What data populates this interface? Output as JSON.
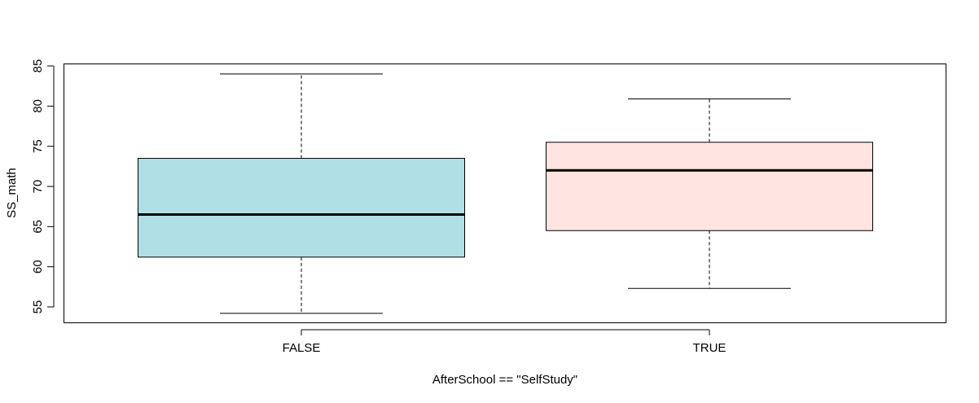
{
  "chart_data": {
    "type": "box",
    "title": "",
    "xlabel": "AfterSchool == \"SelfStudy\"",
    "ylabel": "SS_math",
    "ylim": [
      53,
      85
    ],
    "yticks": [
      55,
      60,
      65,
      70,
      75,
      80,
      85
    ],
    "grid": false,
    "categories": [
      "FALSE",
      "TRUE"
    ],
    "boxes": [
      {
        "category": "FALSE",
        "min": 54.2,
        "q1": 61.2,
        "median": 66.5,
        "q3": 73.5,
        "max": 84.0,
        "fill": "#b0dfe5"
      },
      {
        "category": "TRUE",
        "min": 57.3,
        "q1": 64.5,
        "median": 72.0,
        "q3": 75.5,
        "max": 80.9,
        "fill": "#ffe4e1"
      }
    ]
  }
}
